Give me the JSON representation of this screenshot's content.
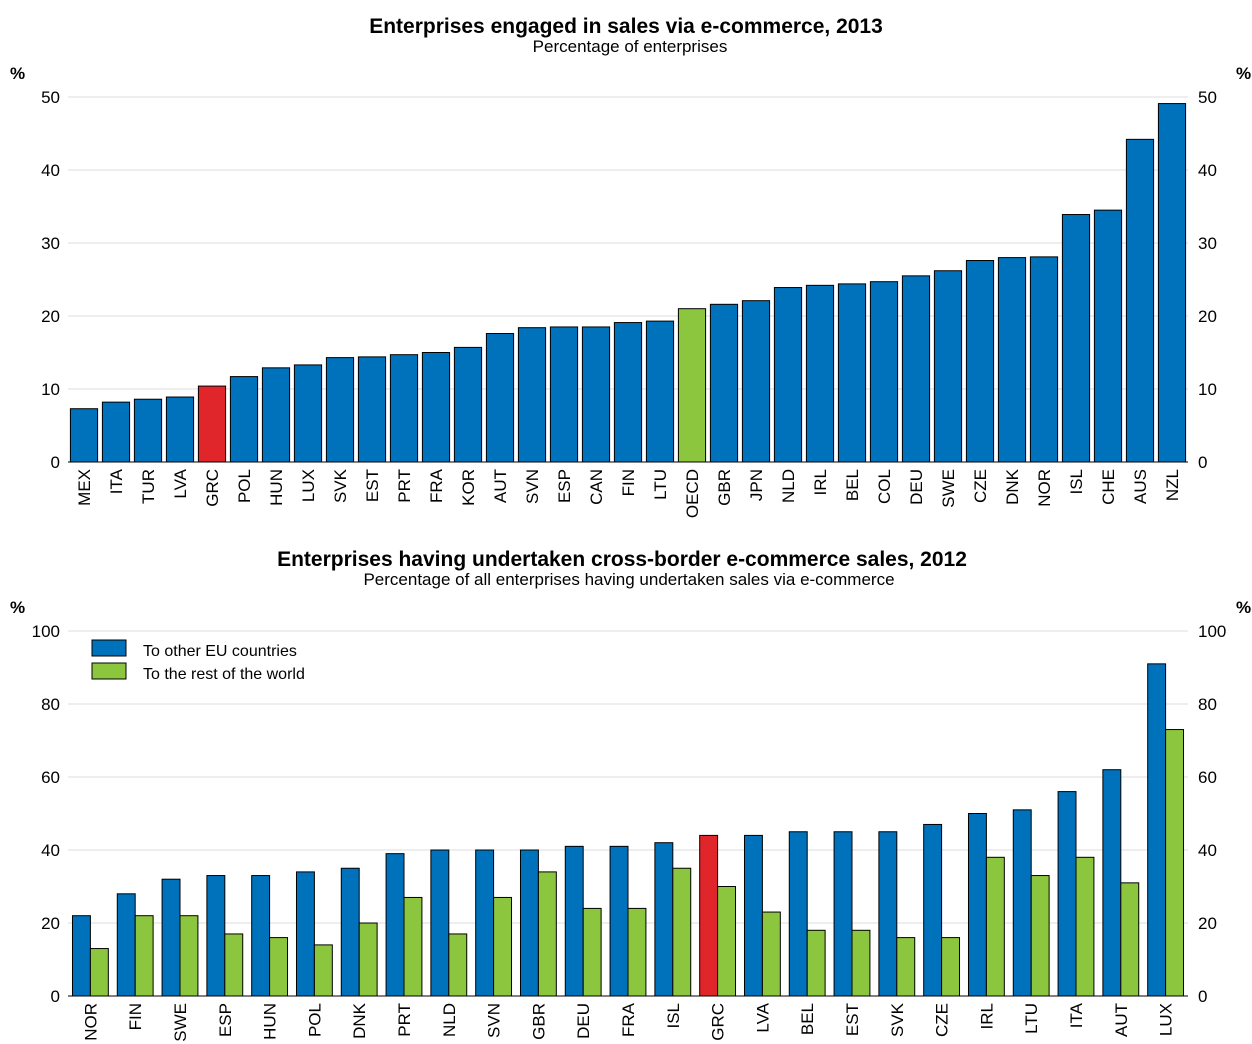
{
  "chart_data": [
    {
      "type": "bar",
      "title": "Enterprises engaged in sales via e-commerce, 2013",
      "subtitle": "Percentage of enterprises",
      "ylabel_left": "%",
      "ylabel_right": "%",
      "ylim": [
        0,
        50
      ],
      "yticks": [
        "0",
        "10",
        "20",
        "30",
        "40",
        "50"
      ],
      "categories": [
        "MEX",
        "ITA",
        "TUR",
        "LVA",
        "GRC",
        "POL",
        "HUN",
        "LUX",
        "SVK",
        "EST",
        "PRT",
        "FRA",
        "KOR",
        "AUT",
        "SVN",
        "ESP",
        "CAN",
        "FIN",
        "LTU",
        "OECD",
        "GBR",
        "JPN",
        "NLD",
        "IRL",
        "BEL",
        "COL",
        "DEU",
        "SWE",
        "CZE",
        "DNK",
        "NOR",
        "ISL",
        "CHE",
        "AUS",
        "NZL"
      ],
      "values": [
        7.3,
        8.2,
        8.6,
        8.9,
        10.4,
        11.7,
        12.9,
        13.3,
        14.3,
        14.4,
        14.7,
        15.0,
        15.7,
        17.6,
        18.4,
        18.5,
        18.5,
        19.1,
        19.3,
        21.0,
        21.6,
        22.1,
        23.9,
        24.2,
        24.4,
        24.7,
        25.5,
        26.2,
        27.6,
        28.0,
        28.1,
        33.9,
        34.5,
        44.2,
        49.1
      ],
      "highlight": {
        "GRC": "#e0262b",
        "OECD": "#8cc63f"
      },
      "colors": {
        "default": "#0071bb",
        "greece": "#e0262b",
        "oecd": "#8cc63f"
      }
    },
    {
      "type": "bar",
      "title": "Enterprises having undertaken cross-border e-commerce sales, 2012",
      "subtitle": "Percentage of all enterprises having undertaken sales via e-commerce",
      "ylabel_left": "%",
      "ylabel_right": "%",
      "ylim": [
        0,
        100
      ],
      "yticks": [
        "0",
        "20",
        "40",
        "60",
        "80",
        "100"
      ],
      "categories": [
        "NOR",
        "FIN",
        "SWE",
        "ESP",
        "HUN",
        "POL",
        "DNK",
        "PRT",
        "NLD",
        "SVN",
        "GBR",
        "DEU",
        "FRA",
        "ISL",
        "GRC",
        "LVA",
        "BEL",
        "EST",
        "SVK",
        "CZE",
        "IRL",
        "LTU",
        "ITA",
        "AUT",
        "LUX"
      ],
      "series": [
        {
          "name": "To other EU countries",
          "color": "#0071bb",
          "values": [
            22,
            28,
            32,
            33,
            33,
            34,
            35,
            39,
            40,
            40,
            40,
            41,
            41,
            42,
            44,
            44,
            45,
            45,
            45,
            47,
            50,
            51,
            56,
            62,
            91
          ]
        },
        {
          "name": "To the rest of the world",
          "color": "#8cc63f",
          "values": [
            13,
            22,
            22,
            17,
            16,
            14,
            20,
            27,
            17,
            27,
            34,
            24,
            24,
            35,
            30,
            23,
            18,
            18,
            16,
            16,
            38,
            33,
            38,
            31,
            73
          ]
        }
      ],
      "highlight": {
        "GRC": "#e0262b"
      },
      "legend": "top-left"
    }
  ]
}
